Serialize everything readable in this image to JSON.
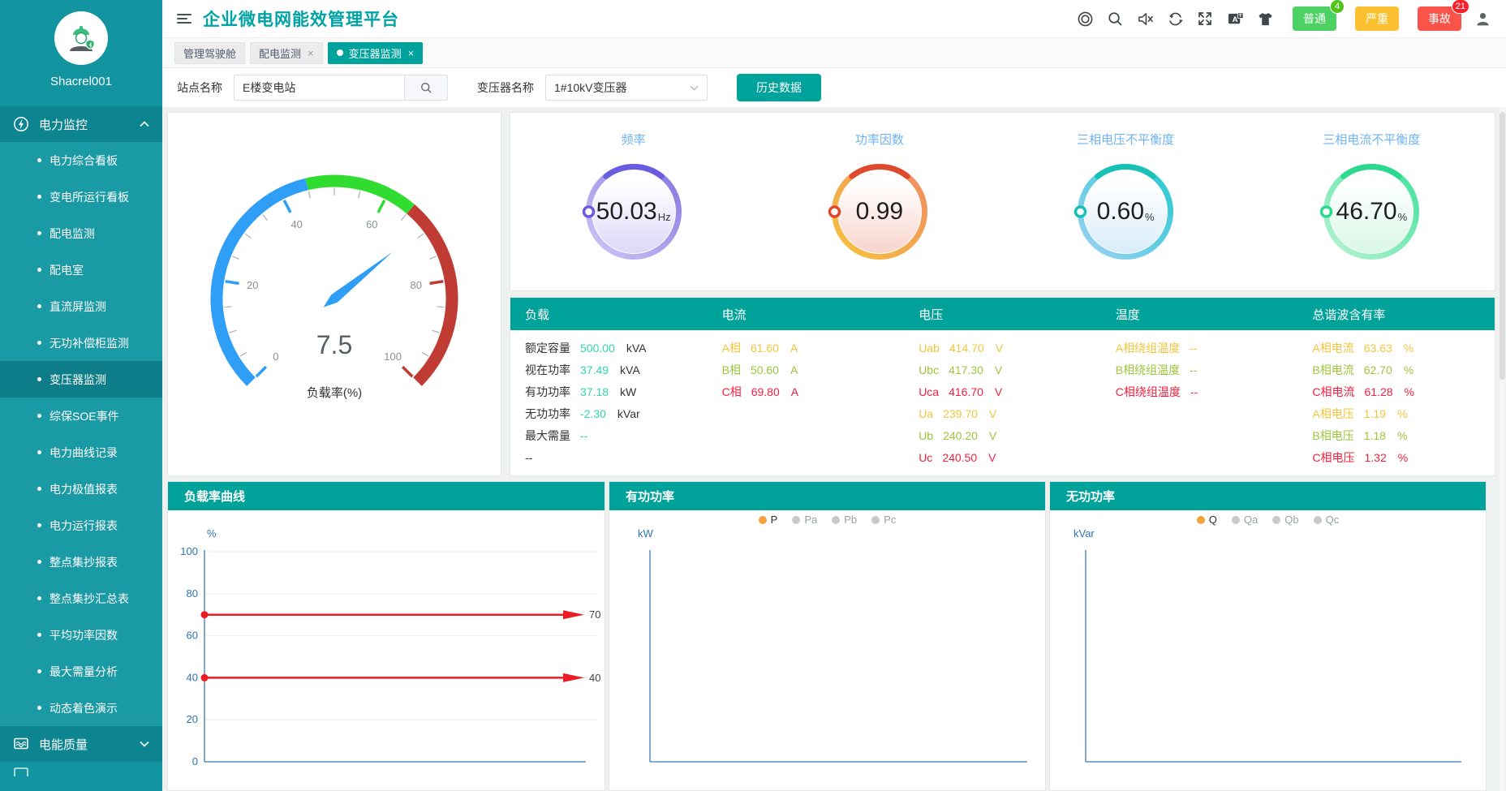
{
  "topbar": {
    "title": "企业微电网能效管理平台",
    "icons": [
      "target-icon",
      "search-icon",
      "mute-icon",
      "refresh-icon",
      "fullscreen-icon",
      "translate-icon",
      "theme-icon",
      "user-icon"
    ],
    "alarms": [
      {
        "label": "普通",
        "count": "4",
        "bg": "#4cd263",
        "badge_bg": "#52c41a"
      },
      {
        "label": "严重",
        "count": "",
        "bg": "#fcc030",
        "badge_bg": ""
      },
      {
        "label": "事故",
        "count": "21",
        "bg": "#fa544a",
        "badge_bg": "#f5222d"
      }
    ]
  },
  "sidebar": {
    "username": "Shacrel001",
    "menu": [
      {
        "label": "电力监控",
        "icon": "power-monitor-icon",
        "expanded": true,
        "items": [
          "电力综合看板",
          "变电所运行看板",
          "配电监测",
          "配电室",
          "直流屏监测",
          "无功补偿柜监测",
          "变压器监测",
          "综保SOE事件",
          "电力曲线记录",
          "电力极值报表",
          "电力运行报表",
          "整点集抄报表",
          "整点集抄汇总表",
          "平均功率因数",
          "最大需量分析",
          "动态着色演示"
        ],
        "active_item": "变压器监测"
      },
      {
        "label": "电能质量",
        "icon": "power-quality-icon",
        "expanded": false,
        "items": []
      }
    ]
  },
  "tabs": [
    {
      "label": "管理驾驶舱",
      "active": false,
      "closable": false
    },
    {
      "label": "配电监测",
      "active": false,
      "closable": true
    },
    {
      "label": "变压器监测",
      "active": true,
      "closable": true
    }
  ],
  "filters": {
    "site_label": "站点名称",
    "site_value": "E楼变电站",
    "transformer_label": "变压器名称",
    "transformer_value": "1#10kV变压器",
    "history_button": "历史数据"
  },
  "table": {
    "columns": [
      {
        "header": "负载",
        "rows": [
          {
            "label": "额定容量",
            "lc": "#333333",
            "value": "500.00",
            "vc": "#30d6ad",
            "unit": "kVA",
            "uc": "#333333"
          },
          {
            "label": "视在功率",
            "lc": "#333333",
            "value": "37.49",
            "vc": "#30d6ad",
            "unit": "kVA",
            "uc": "#333333"
          },
          {
            "label": "有功功率",
            "lc": "#333333",
            "value": "37.18",
            "vc": "#30d6ad",
            "unit": "kW",
            "uc": "#333333"
          },
          {
            "label": "无功功率",
            "lc": "#333333",
            "value": "-2.30",
            "vc": "#30d6ad",
            "unit": "kVar",
            "uc": "#333333"
          },
          {
            "label": "最大需量",
            "lc": "#333333",
            "value": "--",
            "vc": "#30d6ad",
            "unit": "",
            "uc": "#333333"
          },
          {
            "label": "--",
            "lc": "#333333",
            "value": "",
            "vc": "#30d6ad",
            "unit": "",
            "uc": "#333333"
          }
        ]
      },
      {
        "header": "电流",
        "rows": [
          {
            "label": "A相",
            "lc": "#f3c53d",
            "value": "61.60",
            "vc": "#f3c53d",
            "unit": "A",
            "uc": "#f3c53d"
          },
          {
            "label": "B相",
            "lc": "#9dc53c",
            "value": "50.60",
            "vc": "#9dc53c",
            "unit": "A",
            "uc": "#9dc53c"
          },
          {
            "label": "C相",
            "lc": "#f5203e",
            "value": "69.80",
            "vc": "#f5203e",
            "unit": "A",
            "uc": "#f5203e"
          }
        ]
      },
      {
        "header": "电压",
        "rows": [
          {
            "label": "Uab",
            "lc": "#f3c53d",
            "value": "414.70",
            "vc": "#f3c53d",
            "unit": "V",
            "uc": "#f3c53d"
          },
          {
            "label": "Ubc",
            "lc": "#9dc53c",
            "value": "417.30",
            "vc": "#9dc53c",
            "unit": "V",
            "uc": "#9dc53c"
          },
          {
            "label": "Uca",
            "lc": "#f5203e",
            "value": "416.70",
            "vc": "#f5203e",
            "unit": "V",
            "uc": "#f5203e"
          },
          {
            "label": "Ua",
            "lc": "#f3c53d",
            "value": "239.70",
            "vc": "#f3c53d",
            "unit": "V",
            "uc": "#f3c53d"
          },
          {
            "label": "Ub",
            "lc": "#9dc53c",
            "value": "240.20",
            "vc": "#9dc53c",
            "unit": "V",
            "uc": "#9dc53c"
          },
          {
            "label": "Uc",
            "lc": "#f5203e",
            "value": "240.50",
            "vc": "#f5203e",
            "unit": "V",
            "uc": "#f5203e"
          }
        ]
      },
      {
        "header": "温度",
        "rows": [
          {
            "label": "A相绕组温度",
            "lc": "#f3c53d",
            "value": "--",
            "vc": "#f3c53d",
            "unit": "",
            "uc": "#f3c53d"
          },
          {
            "label": "B相绕组温度",
            "lc": "#9dc53c",
            "value": "--",
            "vc": "#9dc53c",
            "unit": "",
            "uc": "#9dc53c"
          },
          {
            "label": "C相绕组温度",
            "lc": "#f5203e",
            "value": "--",
            "vc": "#f5203e",
            "unit": "",
            "uc": "#f5203e"
          }
        ]
      },
      {
        "header": "总谐波含有率",
        "rows": [
          {
            "label": "A相电流",
            "lc": "#f3c53d",
            "value": "63.63",
            "vc": "#f3c53d",
            "unit": "%",
            "uc": "#f3c53d"
          },
          {
            "label": "B相电流",
            "lc": "#9dc53c",
            "value": "62.70",
            "vc": "#9dc53c",
            "unit": "%",
            "uc": "#9dc53c"
          },
          {
            "label": "C相电流",
            "lc": "#f5203e",
            "value": "61.28",
            "vc": "#f5203e",
            "unit": "%",
            "uc": "#f5203e"
          },
          {
            "label": "A相电压",
            "lc": "#f3c53d",
            "value": "1.19",
            "vc": "#f3c53d",
            "unit": "%",
            "uc": "#f3c53d"
          },
          {
            "label": "B相电压",
            "lc": "#9dc53c",
            "value": "1.18",
            "vc": "#9dc53c",
            "unit": "%",
            "uc": "#9dc53c"
          },
          {
            "label": "C相电压",
            "lc": "#f5203e",
            "value": "1.32",
            "vc": "#f5203e",
            "unit": "%",
            "uc": "#f5203e"
          }
        ]
      }
    ]
  },
  "chart_data": [
    {
      "type": "gauge",
      "title": "负载率(%)",
      "value": 7.5,
      "min": 0,
      "max": 100,
      "tick_labels": [
        0,
        20,
        40,
        60,
        80,
        100
      ],
      "needle_position": 69,
      "segments": [
        {
          "upto": 45,
          "color": "#2E9EF7"
        },
        {
          "upto": 65,
          "color": "#30DC30"
        },
        {
          "upto": 100,
          "color": "#BF3B34"
        }
      ]
    },
    {
      "type": "ring",
      "title": "频率",
      "value": "50.03",
      "unit": "Hz",
      "ring_from": "#cfc8f6",
      "ring_to": "#8377e0",
      "accent": "#6a5ce0",
      "fill_tint": "#dcd7f8"
    },
    {
      "type": "ring",
      "title": "功率因数",
      "value": "0.99",
      "unit": "",
      "ring_from": "#f6c33d",
      "ring_to": "#ef8a62",
      "accent": "#dd4a2e",
      "fill_tint": "#f8d4cc"
    },
    {
      "type": "ring",
      "title": "三相电压不平衡度",
      "value": "0.60",
      "unit": "%",
      "ring_from": "#9fd2f5",
      "ring_to": "#23c8cf",
      "accent": "#18c0b6",
      "fill_tint": "#d9ecfa"
    },
    {
      "type": "ring",
      "title": "三相电流不平衡度",
      "value": "46.70",
      "unit": "%",
      "ring_from": "#b9f3d2",
      "ring_to": "#41e29b",
      "accent": "#2bd98c",
      "fill_tint": "#d8f7e6"
    },
    {
      "type": "line",
      "title": "负载率曲线",
      "ylabel": "%",
      "ylim": [
        0,
        100
      ],
      "yticks": [
        0,
        20,
        40,
        60,
        80,
        100
      ],
      "grid": true,
      "series": [],
      "legend": [],
      "marklines": [
        {
          "value": 70,
          "label": "70",
          "color": "#ec1c24"
        },
        {
          "value": 40,
          "label": "40",
          "color": "#ec1c24"
        }
      ]
    },
    {
      "type": "line",
      "title": "有功功率",
      "ylabel": "kW",
      "ylim": null,
      "yticks": [],
      "grid": false,
      "series": [],
      "marklines": [],
      "legend": [
        {
          "label": "P",
          "active": true
        },
        {
          "label": "Pa",
          "active": false
        },
        {
          "label": "Pb",
          "active": false
        },
        {
          "label": "Pc",
          "active": false
        }
      ],
      "legend_active_color": "#f6a23c"
    },
    {
      "type": "line",
      "title": "无功功率",
      "ylabel": "kVar",
      "ylim": null,
      "yticks": [],
      "grid": false,
      "series": [],
      "marklines": [],
      "legend": [
        {
          "label": "Q",
          "active": true
        },
        {
          "label": "Qa",
          "active": false
        },
        {
          "label": "Qb",
          "active": false
        },
        {
          "label": "Qc",
          "active": false
        }
      ],
      "legend_active_color": "#f6a23c"
    }
  ]
}
